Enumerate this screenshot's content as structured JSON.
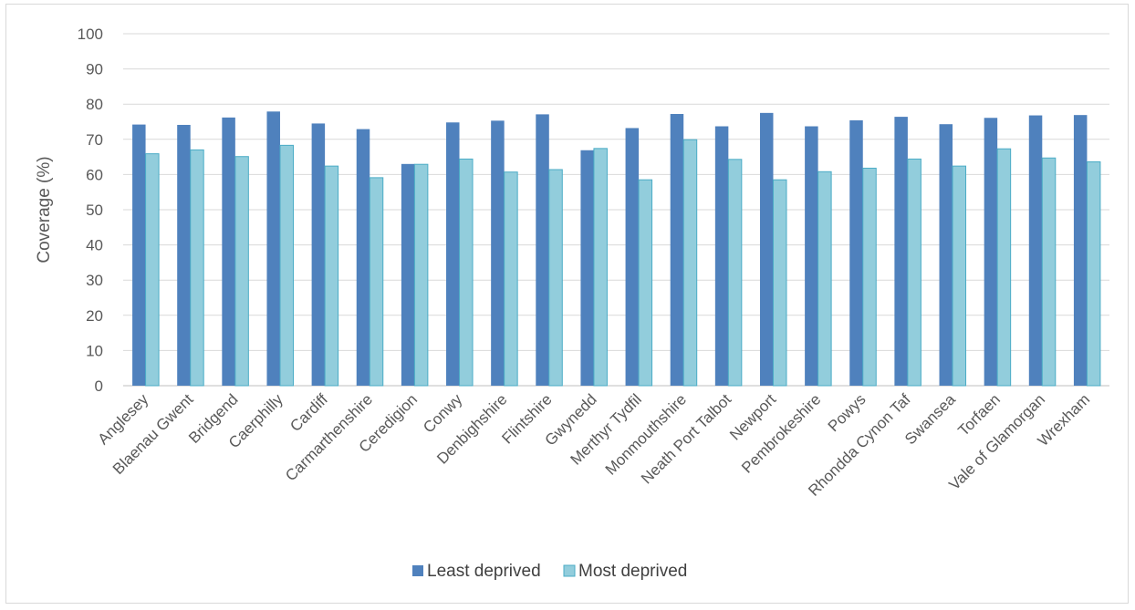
{
  "chart_data": {
    "type": "bar",
    "title": "",
    "xlabel": "",
    "ylabel": "Coverage (%)",
    "ylim": [
      0,
      100
    ],
    "yticks": [
      0,
      10,
      20,
      30,
      40,
      50,
      60,
      70,
      80,
      90,
      100
    ],
    "grid": true,
    "legend_position": "bottom",
    "categories": [
      "Anglesey",
      "Blaenau Gwent",
      "Bridgend",
      "Caerphilly",
      "Cardiff",
      "Carmarthenshire",
      "Ceredigion",
      "Conwy",
      "Denbighshire",
      "Flintshire",
      "Gwynedd",
      "Merthyr Tydfil",
      "Monmouthshire",
      "Neath Port Talbot",
      "Newport",
      "Pembrokeshire",
      "Powys",
      "Rhondda Cynon Taf",
      "Swansea",
      "Torfaen",
      "Vale of Glamorgan",
      "Wrexham"
    ],
    "series": [
      {
        "name": "Least deprived",
        "color": "#4f81bd",
        "values": [
          74.2,
          74.1,
          76.2,
          77.9,
          74.5,
          72.9,
          63.0,
          74.8,
          75.3,
          77.1,
          66.9,
          73.2,
          77.2,
          73.7,
          77.5,
          73.7,
          75.4,
          76.4,
          74.3,
          76.1,
          76.8,
          76.9
        ]
      },
      {
        "name": "Most deprived",
        "color": "#92cddc",
        "values": [
          65.9,
          67.0,
          65.1,
          68.3,
          62.4,
          59.1,
          62.9,
          64.4,
          60.7,
          61.4,
          67.4,
          58.5,
          69.9,
          64.3,
          58.5,
          60.8,
          61.8,
          64.4,
          62.4,
          67.3,
          64.7,
          63.6
        ]
      }
    ]
  }
}
